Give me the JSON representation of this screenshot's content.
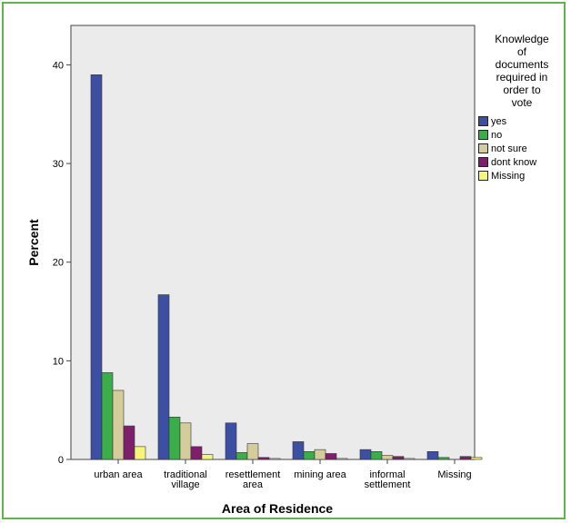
{
  "chart_data": {
    "type": "bar",
    "title": "",
    "xlabel": "Area of Residence",
    "ylabel": "Percent",
    "ylim": [
      0,
      44
    ],
    "yticks": [
      0,
      10,
      20,
      30,
      40
    ],
    "grid": false,
    "legend_position": "right",
    "legend_title": [
      "Knowledge",
      "of",
      "documents",
      "required in",
      "order to",
      "vote"
    ],
    "categories": [
      [
        "urban area"
      ],
      [
        "traditional",
        "village"
      ],
      [
        "resettlement",
        "area"
      ],
      [
        "mining area"
      ],
      [
        "informal",
        "settlement"
      ],
      [
        "Missing"
      ]
    ],
    "series": [
      {
        "name": "yes",
        "color": "#3d4fa3",
        "values": [
          39.0,
          16.7,
          3.7,
          1.8,
          1.0,
          0.8
        ]
      },
      {
        "name": "no",
        "color": "#3aae4a",
        "values": [
          8.8,
          4.3,
          0.7,
          0.8,
          0.8,
          0.2
        ]
      },
      {
        "name": "not sure",
        "color": "#d4cc9a",
        "values": [
          7.0,
          3.7,
          1.6,
          1.0,
          0.4,
          0.0
        ]
      },
      {
        "name": "dont know",
        "color": "#7e1f6e",
        "values": [
          3.4,
          1.3,
          0.2,
          0.6,
          0.3,
          0.3
        ]
      },
      {
        "name": "Missing",
        "color": "#f5f57a",
        "values": [
          1.3,
          0.5,
          0.1,
          0.1,
          0.1,
          0.2
        ]
      }
    ],
    "plot_background": "#ebebeb"
  }
}
